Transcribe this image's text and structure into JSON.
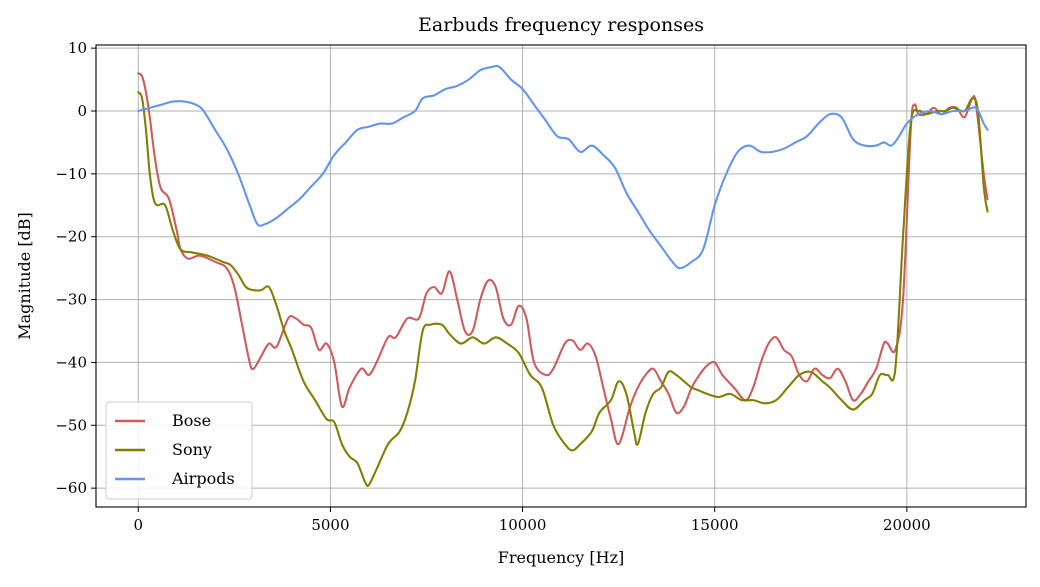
{
  "chart_data": {
    "type": "line",
    "title": "Earbuds frequency responses",
    "xlabel": "Frequency [Hz]",
    "ylabel": "Magnitude [dB]",
    "xlim": [
      -1100,
      23100
    ],
    "ylim": [
      -63,
      10.5
    ],
    "xticks": [
      0,
      5000,
      10000,
      15000,
      20000
    ],
    "xtick_labels": [
      "0",
      "5000",
      "10000",
      "15000",
      "20000"
    ],
    "yticks": [
      10,
      0,
      -10,
      -20,
      -30,
      -40,
      -50,
      -60
    ],
    "ytick_labels": [
      "10",
      "0",
      "−10",
      "−20",
      "−30",
      "−40",
      "−50",
      "−60"
    ],
    "grid": true,
    "legend_position": "lower-left",
    "series": [
      {
        "name": "Bose",
        "color": "#cd5c5c",
        "points": [
          [
            0,
            6
          ],
          [
            100,
            5.5
          ],
          [
            200,
            3
          ],
          [
            300,
            -1
          ],
          [
            400,
            -6
          ],
          [
            500,
            -10
          ],
          [
            600,
            -12.5
          ],
          [
            800,
            -14
          ],
          [
            1000,
            -19
          ],
          [
            1100,
            -22
          ],
          [
            1300,
            -23.5
          ],
          [
            1600,
            -23
          ],
          [
            2000,
            -24
          ],
          [
            2300,
            -25
          ],
          [
            2500,
            -28
          ],
          [
            2700,
            -34
          ],
          [
            2900,
            -40
          ],
          [
            3000,
            -41
          ],
          [
            3200,
            -39
          ],
          [
            3400,
            -37
          ],
          [
            3600,
            -37.5
          ],
          [
            3900,
            -33
          ],
          [
            4100,
            -33
          ],
          [
            4300,
            -34
          ],
          [
            4500,
            -34.5
          ],
          [
            4700,
            -38
          ],
          [
            4900,
            -37
          ],
          [
            5100,
            -40
          ],
          [
            5300,
            -47
          ],
          [
            5500,
            -44
          ],
          [
            5800,
            -41
          ],
          [
            6000,
            -42
          ],
          [
            6200,
            -40
          ],
          [
            6500,
            -36
          ],
          [
            6700,
            -36
          ],
          [
            7000,
            -33
          ],
          [
            7300,
            -33
          ],
          [
            7500,
            -29
          ],
          [
            7700,
            -28
          ],
          [
            7900,
            -29
          ],
          [
            8100,
            -25.5
          ],
          [
            8300,
            -30
          ],
          [
            8500,
            -35
          ],
          [
            8700,
            -35
          ],
          [
            8900,
            -30
          ],
          [
            9100,
            -27
          ],
          [
            9300,
            -28
          ],
          [
            9500,
            -33
          ],
          [
            9700,
            -34
          ],
          [
            9900,
            -31
          ],
          [
            10100,
            -33
          ],
          [
            10300,
            -40
          ],
          [
            10600,
            -42
          ],
          [
            10800,
            -41
          ],
          [
            11100,
            -37
          ],
          [
            11300,
            -36.5
          ],
          [
            11500,
            -38
          ],
          [
            11700,
            -37
          ],
          [
            11900,
            -39
          ],
          [
            12100,
            -44
          ],
          [
            12300,
            -49
          ],
          [
            12500,
            -53
          ],
          [
            12800,
            -47
          ],
          [
            13000,
            -44
          ],
          [
            13200,
            -42
          ],
          [
            13400,
            -41
          ],
          [
            13600,
            -43
          ],
          [
            13800,
            -45
          ],
          [
            14000,
            -48
          ],
          [
            14200,
            -47
          ],
          [
            14400,
            -44
          ],
          [
            14600,
            -42
          ],
          [
            14800,
            -40.5
          ],
          [
            15000,
            -40
          ],
          [
            15200,
            -42
          ],
          [
            15500,
            -44
          ],
          [
            15800,
            -46
          ],
          [
            16000,
            -44
          ],
          [
            16200,
            -40
          ],
          [
            16400,
            -37
          ],
          [
            16600,
            -36
          ],
          [
            16800,
            -38
          ],
          [
            17000,
            -39
          ],
          [
            17200,
            -42
          ],
          [
            17400,
            -43
          ],
          [
            17600,
            -41
          ],
          [
            17800,
            -42
          ],
          [
            18000,
            -42.5
          ],
          [
            18200,
            -41
          ],
          [
            18400,
            -43
          ],
          [
            18600,
            -46
          ],
          [
            18800,
            -45
          ],
          [
            19000,
            -43
          ],
          [
            19200,
            -41
          ],
          [
            19400,
            -37
          ],
          [
            19500,
            -37
          ],
          [
            19700,
            -38
          ],
          [
            19900,
            -30
          ],
          [
            20100,
            -3
          ],
          [
            20200,
            1
          ],
          [
            20300,
            -0.5
          ],
          [
            20500,
            -0.5
          ],
          [
            20700,
            0.5
          ],
          [
            20900,
            -0.5
          ],
          [
            21100,
            0.5
          ],
          [
            21300,
            0.5
          ],
          [
            21500,
            -1
          ],
          [
            21700,
            2
          ],
          [
            21800,
            1
          ],
          [
            22000,
            -10
          ],
          [
            22100,
            -14
          ]
        ]
      },
      {
        "name": "Sony",
        "color": "#808000",
        "points": [
          [
            0,
            3
          ],
          [
            100,
            2
          ],
          [
            200,
            -3
          ],
          [
            300,
            -10
          ],
          [
            400,
            -14
          ],
          [
            500,
            -15
          ],
          [
            700,
            -15
          ],
          [
            900,
            -19
          ],
          [
            1100,
            -22
          ],
          [
            1400,
            -22.5
          ],
          [
            1800,
            -23
          ],
          [
            2200,
            -24
          ],
          [
            2400,
            -24.5
          ],
          [
            2600,
            -26
          ],
          [
            2800,
            -28
          ],
          [
            3000,
            -28.5
          ],
          [
            3200,
            -28.5
          ],
          [
            3400,
            -28
          ],
          [
            3600,
            -31
          ],
          [
            3800,
            -35
          ],
          [
            4000,
            -38
          ],
          [
            4300,
            -43
          ],
          [
            4600,
            -46
          ],
          [
            4900,
            -49
          ],
          [
            5100,
            -49.5
          ],
          [
            5300,
            -53
          ],
          [
            5500,
            -55
          ],
          [
            5700,
            -56
          ],
          [
            5900,
            -59
          ],
          [
            6000,
            -59.5
          ],
          [
            6200,
            -57
          ],
          [
            6500,
            -53
          ],
          [
            6800,
            -51
          ],
          [
            7000,
            -48
          ],
          [
            7200,
            -43
          ],
          [
            7400,
            -35
          ],
          [
            7600,
            -34
          ],
          [
            7900,
            -34
          ],
          [
            8100,
            -35.5
          ],
          [
            8400,
            -37
          ],
          [
            8700,
            -36
          ],
          [
            9000,
            -37
          ],
          [
            9300,
            -36
          ],
          [
            9600,
            -37
          ],
          [
            9900,
            -38.5
          ],
          [
            10200,
            -42
          ],
          [
            10500,
            -44
          ],
          [
            10800,
            -50
          ],
          [
            11100,
            -53
          ],
          [
            11300,
            -54
          ],
          [
            11500,
            -53
          ],
          [
            11800,
            -51
          ],
          [
            12000,
            -48
          ],
          [
            12300,
            -46
          ],
          [
            12500,
            -43
          ],
          [
            12700,
            -45
          ],
          [
            12900,
            -51
          ],
          [
            13000,
            -53
          ],
          [
            13200,
            -48
          ],
          [
            13400,
            -45
          ],
          [
            13600,
            -44
          ],
          [
            13800,
            -41.5
          ],
          [
            14000,
            -42
          ],
          [
            14200,
            -43
          ],
          [
            14400,
            -44
          ],
          [
            14600,
            -44.5
          ],
          [
            14800,
            -45
          ],
          [
            15100,
            -45.5
          ],
          [
            15400,
            -45
          ],
          [
            15700,
            -46
          ],
          [
            16000,
            -46
          ],
          [
            16300,
            -46.5
          ],
          [
            16600,
            -46
          ],
          [
            16900,
            -44
          ],
          [
            17200,
            -42
          ],
          [
            17500,
            -41.5
          ],
          [
            17800,
            -43
          ],
          [
            18000,
            -44
          ],
          [
            18300,
            -46
          ],
          [
            18600,
            -47.5
          ],
          [
            18900,
            -46
          ],
          [
            19100,
            -45
          ],
          [
            19300,
            -42
          ],
          [
            19500,
            -42
          ],
          [
            19700,
            -41
          ],
          [
            19900,
            -20
          ],
          [
            20100,
            -2
          ],
          [
            20300,
            0
          ],
          [
            20500,
            -0.5
          ],
          [
            20800,
            0
          ],
          [
            21000,
            0
          ],
          [
            21200,
            0.5
          ],
          [
            21500,
            0
          ],
          [
            21700,
            2
          ],
          [
            21850,
            0
          ],
          [
            22000,
            -12
          ],
          [
            22100,
            -16
          ]
        ]
      },
      {
        "name": "Airpods",
        "color": "#6495ed",
        "points": [
          [
            0,
            0
          ],
          [
            300,
            0.5
          ],
          [
            600,
            1
          ],
          [
            900,
            1.5
          ],
          [
            1200,
            1.5
          ],
          [
            1500,
            1
          ],
          [
            1700,
            0
          ],
          [
            2000,
            -3
          ],
          [
            2300,
            -6
          ],
          [
            2600,
            -10
          ],
          [
            2900,
            -15
          ],
          [
            3100,
            -18
          ],
          [
            3300,
            -18
          ],
          [
            3600,
            -17
          ],
          [
            3900,
            -15.5
          ],
          [
            4200,
            -14
          ],
          [
            4500,
            -12
          ],
          [
            4800,
            -10
          ],
          [
            5100,
            -7
          ],
          [
            5400,
            -5
          ],
          [
            5700,
            -3
          ],
          [
            6000,
            -2.5
          ],
          [
            6300,
            -2
          ],
          [
            6600,
            -2
          ],
          [
            6900,
            -1
          ],
          [
            7200,
            0
          ],
          [
            7400,
            2
          ],
          [
            7700,
            2.5
          ],
          [
            8000,
            3.5
          ],
          [
            8300,
            4
          ],
          [
            8600,
            5
          ],
          [
            8900,
            6.5
          ],
          [
            9200,
            7
          ],
          [
            9400,
            7
          ],
          [
            9700,
            5
          ],
          [
            10000,
            3.5
          ],
          [
            10300,
            1
          ],
          [
            10600,
            -1.5
          ],
          [
            10900,
            -4
          ],
          [
            11200,
            -4.5
          ],
          [
            11500,
            -6.5
          ],
          [
            11800,
            -5.5
          ],
          [
            12100,
            -7
          ],
          [
            12400,
            -9
          ],
          [
            12700,
            -13
          ],
          [
            13000,
            -16
          ],
          [
            13300,
            -19
          ],
          [
            13600,
            -21.5
          ],
          [
            13900,
            -24
          ],
          [
            14100,
            -25
          ],
          [
            14400,
            -24
          ],
          [
            14700,
            -22
          ],
          [
            15000,
            -15
          ],
          [
            15300,
            -10
          ],
          [
            15600,
            -6.5
          ],
          [
            15900,
            -5.5
          ],
          [
            16200,
            -6.5
          ],
          [
            16500,
            -6.5
          ],
          [
            16800,
            -6
          ],
          [
            17100,
            -5
          ],
          [
            17400,
            -4
          ],
          [
            17700,
            -2
          ],
          [
            18000,
            -0.5
          ],
          [
            18300,
            -1
          ],
          [
            18600,
            -4.5
          ],
          [
            18900,
            -5.5
          ],
          [
            19200,
            -5.5
          ],
          [
            19400,
            -5
          ],
          [
            19600,
            -5.5
          ],
          [
            19800,
            -4
          ],
          [
            20000,
            -2
          ],
          [
            20300,
            -0.5
          ],
          [
            20600,
            0
          ],
          [
            20900,
            -0.5
          ],
          [
            21200,
            0
          ],
          [
            21500,
            0
          ],
          [
            21800,
            0.5
          ],
          [
            22000,
            -2
          ],
          [
            22100,
            -3
          ]
        ]
      }
    ]
  }
}
